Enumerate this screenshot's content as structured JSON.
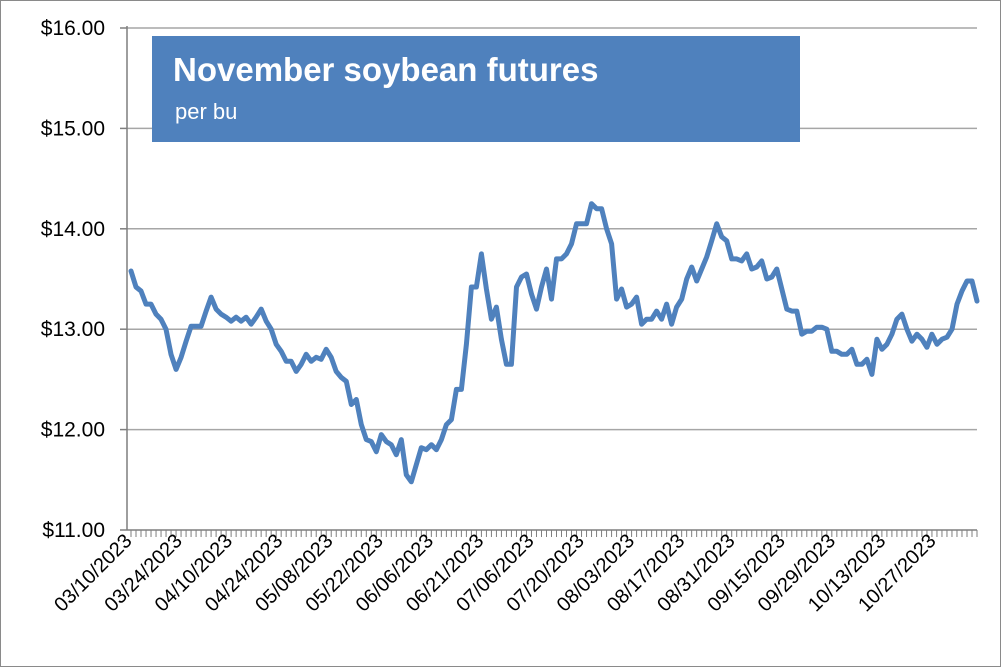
{
  "chart_data": {
    "type": "line",
    "title": "November soybean futures",
    "subtitle": "per bu",
    "xlabel": "",
    "ylabel": "",
    "ylim": [
      11.0,
      16.0
    ],
    "y_ticks": [
      "$11.00",
      "$12.00",
      "$13.00",
      "$14.00",
      "$15.00",
      "$16.00"
    ],
    "x_tick_labels": [
      "03/10/2023",
      "03/24/2023",
      "04/10/2023",
      "04/24/2023",
      "05/08/2023",
      "05/22/2023",
      "06/06/2023",
      "06/21/2023",
      "07/06/2023",
      "07/20/2023",
      "08/03/2023",
      "08/17/2023",
      "08/31/2023",
      "09/15/2023",
      "09/29/2023",
      "10/13/2023",
      "10/27/2023"
    ],
    "grid": true,
    "legend": "none",
    "colors": {
      "line": "#4f81bd",
      "title_box": "#4f81bd",
      "grid": "#a6a6a6",
      "axis": "#7f7f7f"
    },
    "series": [
      {
        "values": [
          13.58,
          13.42,
          13.38,
          13.25,
          13.25,
          13.15,
          13.1,
          13.0,
          12.75,
          12.6,
          12.72,
          12.88,
          13.03,
          13.03,
          13.03,
          13.18,
          13.32,
          13.2,
          13.15,
          13.12,
          13.08,
          13.12,
          13.08,
          13.12,
          13.05,
          13.12,
          13.2,
          13.08,
          13.0,
          12.85,
          12.78,
          12.68,
          12.68,
          12.58,
          12.65,
          12.75,
          12.68,
          12.72,
          12.7,
          12.8,
          12.72,
          12.58,
          12.52,
          12.48,
          12.25,
          12.3,
          12.05,
          11.9,
          11.88,
          11.78,
          11.95,
          11.88,
          11.85,
          11.75,
          11.9,
          11.55,
          11.48,
          11.65,
          11.82,
          11.8,
          11.85,
          11.8,
          11.9,
          12.05,
          12.1,
          12.4,
          12.4,
          12.85,
          13.42,
          13.42,
          13.75,
          13.4,
          13.1,
          13.22,
          12.9,
          12.65,
          12.65,
          13.42,
          13.52,
          13.55,
          13.35,
          13.2,
          13.42,
          13.6,
          13.3,
          13.7,
          13.7,
          13.75,
          13.85,
          14.05,
          14.05,
          14.05,
          14.25,
          14.2,
          14.2,
          14.0,
          13.85,
          13.3,
          13.4,
          13.22,
          13.25,
          13.32,
          13.05,
          13.1,
          13.1,
          13.18,
          13.1,
          13.25,
          13.05,
          13.22,
          13.3,
          13.5,
          13.62,
          13.48,
          13.6,
          13.72,
          13.88,
          14.05,
          13.92,
          13.88,
          13.7,
          13.7,
          13.68,
          13.75,
          13.6,
          13.62,
          13.68,
          13.5,
          13.52,
          13.6,
          13.4,
          13.2,
          13.18,
          13.18,
          12.95,
          12.98,
          12.98,
          13.02,
          13.02,
          13.0,
          12.78,
          12.78,
          12.75,
          12.75,
          12.8,
          12.65,
          12.65,
          12.7,
          12.55,
          12.9,
          12.8,
          12.85,
          12.95,
          13.1,
          13.15,
          13.0,
          12.88,
          12.95,
          12.9,
          12.82,
          12.95,
          12.85,
          12.9,
          12.92,
          13.0,
          13.25,
          13.38,
          13.48,
          13.48,
          13.28
        ]
      }
    ]
  }
}
